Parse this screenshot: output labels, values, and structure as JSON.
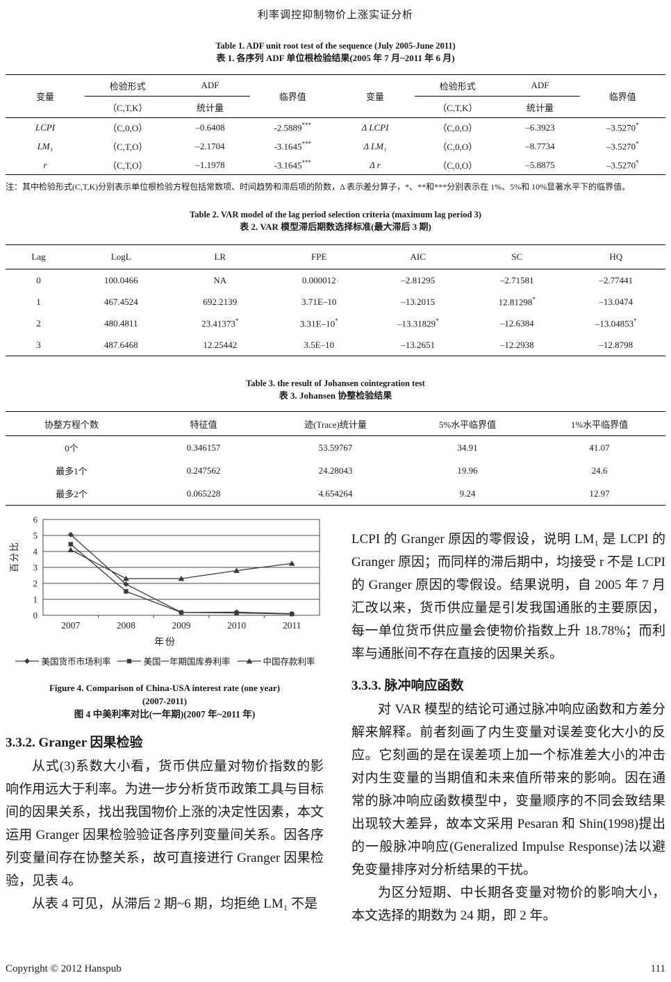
{
  "page": {
    "running_title": "利率调控抑制物价上涨实证分析",
    "footer": {
      "copyright": "Copyright © 2012 Hanspub",
      "page_number": "111"
    }
  },
  "table1": {
    "title_en": "Table 1. ADF unit root test of the sequence (July 2005-June 2011)",
    "title_cn": "表 1.  各序列 ADF 单位根检验结果(2005 年 7 月~2011 年 6 月)",
    "header": {
      "variable": "变量",
      "test_form": "检验形式",
      "test_form_sub": "（C,T,K）",
      "adf": "ADF",
      "adf_sub": "统计量",
      "critical": "临界值"
    },
    "rows": [
      [
        {
          "v": "LCPI",
          "i": true
        },
        "（C,0,O）",
        "–0.6408",
        {
          "v": "-2.5889",
          "s": "***"
        },
        {
          "v": "Δ LCPI",
          "i": true
        },
        "（C,0,O）",
        "–6.3923",
        {
          "v": "–3.5270",
          "s": "*"
        }
      ],
      [
        {
          "v": "LM₁",
          "i": true
        },
        "（C,T,O）",
        "–2.1704",
        {
          "v": "-3.1645",
          "s": "***"
        },
        {
          "v": "Δ LM₁",
          "i": true
        },
        "（C,0,O）",
        "–8.7734",
        {
          "v": "–3.5270",
          "s": "*"
        }
      ],
      [
        {
          "v": "r",
          "i": true
        },
        "（C,T,O）",
        "–1.1978",
        {
          "v": "-3.1645",
          "s": "***"
        },
        {
          "v": "Δ r",
          "i": true
        },
        "（C,0,O）",
        "–5.8875",
        {
          "v": "–3.5270",
          "s": "*"
        }
      ]
    ],
    "note": "注：其中检验形式(C,T,K)分别表示单位根检验方程包括常数项、时间趋势和滞后项的阶数，Δ 表示差分算子，*、**和***分别表示在 1%、5%和 10%显著水平下的临界值。"
  },
  "table2": {
    "title_en": "Table 2. VAR model of the lag period selection criteria (maximum lag period 3)",
    "title_cn": "表 2. VAR 模型滞后期数选择标准(最大滞后 3 期)",
    "columns": [
      "Lag",
      "LogL",
      "LR",
      "FPE",
      "AIC",
      "SC",
      "HQ"
    ],
    "rows": [
      [
        "0",
        "100.0466",
        "NA",
        "0.000012",
        "–2.81295",
        "–2.71581",
        "–2.77441"
      ],
      [
        "1",
        "467.4524",
        "692.2139",
        "3.71E–10",
        "–13.2015",
        {
          "v": "12.81298",
          "s": "*"
        },
        "–13.0474"
      ],
      [
        "2",
        "480.4811",
        {
          "v": "23.41373",
          "s": "*"
        },
        {
          "v": "3.31E–10",
          "s": "*"
        },
        {
          "v": "–13.31829",
          "s": "*"
        },
        "–12.6384",
        {
          "v": "–13.04853",
          "s": "*"
        }
      ],
      [
        "3",
        "487.6468",
        "12.25442",
        "3.5E–10",
        "–13.2651",
        "–12.2938",
        "–12.8798"
      ]
    ]
  },
  "table3": {
    "title_en": "Table 3. the result of Johansen cointegration test",
    "title_cn": "表 3. Johansen 协整检验结果",
    "columns": [
      "协整方程个数",
      "特征值",
      "迹(Trace)统计量",
      "5%水平临界值",
      "1%水平临界值"
    ],
    "rows": [
      [
        "0个",
        "0.346157",
        "53.59767",
        "34.91",
        "41.07"
      ],
      [
        "最多1个",
        "0.247562",
        "24.28043",
        "19.96",
        "24.6"
      ],
      [
        "最多2个",
        "0.065228",
        "4.654264",
        "9.24",
        "12.97"
      ]
    ]
  },
  "chart_data": {
    "type": "line",
    "x": [
      "2007",
      "2008",
      "2009",
      "2010",
      "2011"
    ],
    "series": [
      {
        "name": "美国货币市场利率",
        "marker": "diamond",
        "values": [
          5.05,
          1.95,
          0.18,
          0.2,
          0.1
        ]
      },
      {
        "name": "美国一年期国库券利率",
        "marker": "square",
        "values": [
          4.45,
          1.5,
          0.18,
          0.15,
          0.08
        ]
      },
      {
        "name": "中国存款利率",
        "marker": "triangle",
        "values": [
          4.1,
          2.3,
          2.3,
          2.8,
          3.25
        ]
      }
    ],
    "ylabel": "百分比",
    "xlabel": "年份",
    "ylim": [
      0,
      6
    ],
    "yticks": [
      0,
      1,
      2,
      3,
      4,
      5,
      6
    ],
    "grid": "horizontal",
    "legend_position": "bottom",
    "line_color": "#3a3a3a"
  },
  "figure": {
    "caption_en1": "Figure 4. Comparison of China-USA interest rate (one year)",
    "caption_en2": "(2007-2011)",
    "caption_cn": "图 4  中美利率对比(一年期)(2007 年~2011 年)"
  },
  "sections": {
    "granger": {
      "heading": "3.3.2. Granger 因果检验",
      "para1": "从式(3)系数大小看，货币供应量对物价指数的影响作用远大于利率。为进一步分析货币政策工具与目标间的因果关系，找出我国物价上涨的决定性因素，本文运用 Granger 因果检验验证各序列变量间关系。因各序列变量间存在协整关系，故可直接进行 Granger 因果检验，见表 4。",
      "para2": "从表 4 可见，从滞后 2 期~6 期，均拒绝 LM₁ 不是"
    },
    "granger_result": {
      "para1": "LCPI 的 Granger 原因的零假设，说明 LM₁ 是 LCPI 的 Granger 原因；而同样的滞后期中，均接受 r 不是 LCPI 的 Granger 原因的零假设。结果说明，自 2005 年 7 月汇改以来，货币供应量是引发我国通胀的主要原因，每一单位货币供应量会使物价指数上升 18.78%；而利率与通胀间不存在直接的因果关系。"
    },
    "impulse": {
      "heading": "3.3.3.  脉冲响应函数",
      "para1": "对 VAR 模型的结论可通过脉冲响应函数和方差分解来解释。前者刻画了内生变量对误差变化大小的反应。它刻画的是在误差项上加一个标准差大小的冲击对内生变量的当期值和未来值所带来的影响。因在通常的脉冲响应函数模型中，变量顺序的不同会致结果出现较大差异，故本文采用 Pesaran 和 Shin(1998)提出的一般脉冲响应(Generalized Impulse Response)法以避免变量排序对分析结果的干扰。",
      "para2": "为区分短期、中长期各变量对物价的影响大小，本文选择的期数为 24 期，即 2 年。"
    }
  }
}
